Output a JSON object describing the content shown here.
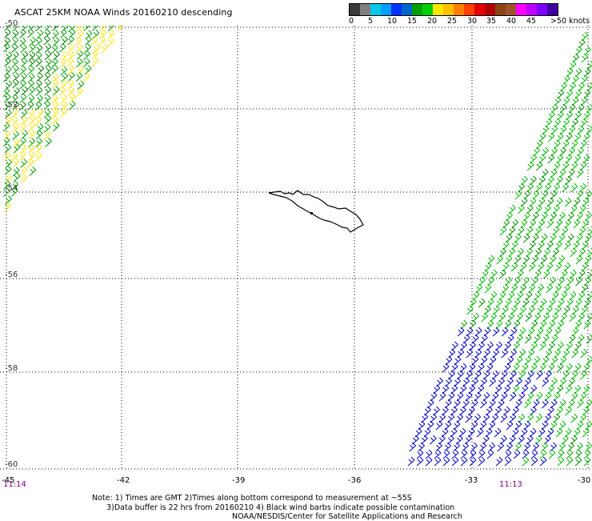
{
  "title": "ASCAT 25KM NOAA Winds 20160210 descending",
  "scale": {
    "colors": [
      "#3a3a3a",
      "#7f7f7f",
      "#00c8e6",
      "#00a0ff",
      "#0033ff",
      "#0066cc",
      "#00a000",
      "#00d000",
      "#ffe600",
      "#ffc000",
      "#ff8000",
      "#ff4000",
      "#e60000",
      "#b00000",
      "#8b4513",
      "#a0522d",
      "#ff00ff",
      "#c000ff",
      "#8000ff",
      "#4000a0"
    ],
    "labels": [
      "0",
      "5",
      "10",
      "15",
      "20",
      "25",
      "30",
      "35",
      "40",
      "45",
      ">50 knots"
    ]
  },
  "latitudes": [
    "-50",
    "-52",
    "-54",
    "-56",
    "-58",
    "-60"
  ],
  "longitudes": [
    "-45",
    "-42",
    "-39",
    "-36",
    "-33",
    "-30"
  ],
  "times": [
    "11:14",
    "11:13"
  ],
  "note_lines": [
    "Note: 1) Times are GMT 2)Times along bottom correspond to measurement at ~55S",
    "      3)Data buffer is 22 hrs from 20160210 4) Black wind barbs indicate possible contamination"
  ],
  "credit": "NOAA/NESDIS/Center for Satellite Applications and Research",
  "swaths": {
    "left_swath_colors": [
      "#ffe600",
      "#ffcc00",
      "#00a000",
      "#008000"
    ],
    "right_swath_colors": [
      "#00c000",
      "#00b000",
      "#009000",
      "#0000c8"
    ],
    "island": "South Georgia"
  }
}
